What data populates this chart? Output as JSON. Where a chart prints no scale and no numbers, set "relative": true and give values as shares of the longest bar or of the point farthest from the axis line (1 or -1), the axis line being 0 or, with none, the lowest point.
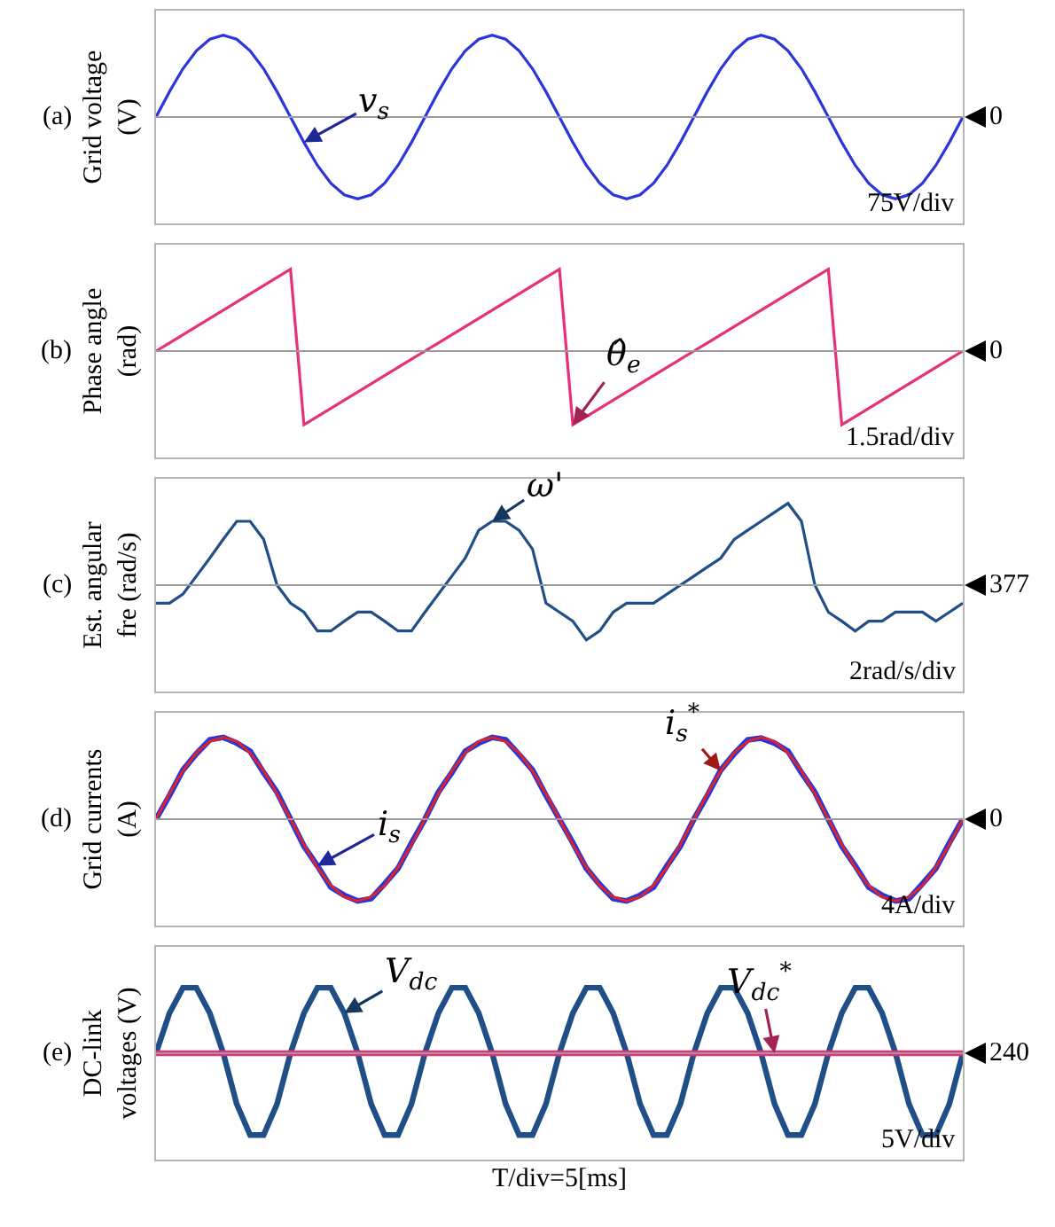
{
  "chart_data": [
    {
      "type": "line",
      "relative": true,
      "tick_labels": false,
      "ylabel": "Grid voltage\n(V)",
      "categories": [
        null,
        null,
        null,
        null,
        null,
        null,
        null,
        null,
        null,
        null,
        null,
        null,
        null,
        null,
        null,
        null,
        null,
        null,
        null,
        null,
        null,
        null,
        null,
        null,
        null,
        null,
        null,
        null,
        null,
        null,
        null,
        null,
        null,
        null,
        null,
        null,
        null,
        null,
        null,
        null,
        null,
        null,
        null,
        null,
        null,
        null,
        null,
        null,
        null,
        null,
        null,
        null,
        null,
        null,
        null,
        null,
        null,
        null,
        null,
        null,
        null
      ],
      "series": [
        {
          "name": "v$_{s}$",
          "color": "#2b36d9",
          "values": [
            0,
            0.31,
            0.59,
            0.81,
            0.95,
            1,
            0.95,
            0.81,
            0.59,
            0.31,
            0,
            -0.31,
            -0.59,
            -0.81,
            -0.95,
            -1,
            -0.95,
            -0.81,
            -0.59,
            -0.31,
            0,
            0.31,
            0.59,
            0.81,
            0.95,
            1,
            0.95,
            0.81,
            0.59,
            0.31,
            0,
            -0.31,
            -0.59,
            -0.81,
            -0.95,
            -1,
            -0.95,
            -0.81,
            -0.59,
            -0.31,
            0,
            0.31,
            0.59,
            0.81,
            0.95,
            1,
            0.95,
            0.81,
            0.59,
            0.31,
            0,
            -0.31,
            -0.59,
            -0.81,
            -0.95,
            -1,
            -0.95,
            -0.81,
            -0.59,
            -0.31,
            0
          ]
        }
      ],
      "annotations": [
        "(a)",
        "75V/div",
        "0"
      ]
    },
    {
      "type": "line",
      "relative": true,
      "tick_labels": false,
      "ylabel": "Phase angle\n(rad)",
      "categories": [
        null,
        null,
        null,
        null,
        null,
        null,
        null,
        null,
        null,
        null,
        null,
        null,
        null,
        null,
        null,
        null,
        null,
        null,
        null,
        null,
        null,
        null,
        null,
        null,
        null,
        null,
        null,
        null,
        null,
        null,
        null,
        null,
        null,
        null,
        null,
        null,
        null,
        null,
        null,
        null,
        null,
        null,
        null,
        null,
        null,
        null,
        null,
        null,
        null,
        null,
        null,
        null,
        null,
        null,
        null,
        null,
        null,
        null,
        null,
        null,
        null
      ],
      "series": [
        {
          "name": "θ̂$_{e}$",
          "color": "#e6307a",
          "values": [
            0,
            0.1,
            0.2,
            0.3,
            0.4,
            0.5,
            0.6,
            0.7,
            0.8,
            0.9,
            1,
            -0.9,
            -0.8,
            -0.7,
            -0.6,
            -0.5,
            -0.4,
            -0.3,
            -0.2,
            -0.1,
            0,
            0.1,
            0.2,
            0.3,
            0.4,
            0.5,
            0.6,
            0.7,
            0.8,
            0.9,
            1,
            -0.9,
            -0.8,
            -0.7,
            -0.6,
            -0.5,
            -0.4,
            -0.3,
            -0.2,
            -0.1,
            0,
            0.1,
            0.2,
            0.3,
            0.4,
            0.5,
            0.6,
            0.7,
            0.8,
            0.9,
            1,
            -0.9,
            -0.8,
            -0.7,
            -0.6,
            -0.5,
            -0.4,
            -0.3,
            -0.2,
            -0.1,
            0
          ]
        }
      ],
      "annotations": [
        "(b)",
        "1.5rad/div",
        "0"
      ]
    },
    {
      "type": "line",
      "relative": true,
      "tick_labels": false,
      "ylabel": "Est. angular\nfre (rad/s)",
      "categories": [
        null,
        null,
        null,
        null,
        null,
        null,
        null,
        null,
        null,
        null,
        null,
        null,
        null,
        null,
        null,
        null,
        null,
        null,
        null,
        null,
        null,
        null,
        null,
        null,
        null,
        null,
        null,
        null,
        null,
        null,
        null,
        null,
        null,
        null,
        null,
        null,
        null,
        null,
        null,
        null,
        null,
        null,
        null,
        null,
        null,
        null,
        null,
        null,
        null,
        null,
        null,
        null,
        null,
        null,
        null,
        null,
        null,
        null,
        null,
        null,
        null
      ],
      "series": [
        {
          "name": "ω'",
          "color": "#1f4f86",
          "values": [
            -0.22,
            -0.22,
            -0.11,
            0.11,
            0.33,
            0.56,
            0.78,
            0.78,
            0.56,
            0,
            -0.22,
            -0.33,
            -0.56,
            -0.56,
            -0.44,
            -0.33,
            -0.33,
            -0.44,
            -0.56,
            -0.56,
            -0.33,
            -0.11,
            0.11,
            0.33,
            0.67,
            0.78,
            0.78,
            0.67,
            0.44,
            -0.22,
            -0.33,
            -0.44,
            -0.67,
            -0.56,
            -0.33,
            -0.22,
            -0.22,
            -0.22,
            -0.11,
            0,
            0.11,
            0.22,
            0.33,
            0.56,
            0.67,
            0.78,
            0.89,
            1,
            0.78,
            0,
            -0.33,
            -0.44,
            -0.56,
            -0.44,
            -0.44,
            -0.33,
            -0.33,
            -0.33,
            -0.44,
            -0.33,
            -0.22
          ]
        }
      ],
      "annotations": [
        "(c)",
        "2rad/s/div",
        "377"
      ]
    },
    {
      "type": "line",
      "relative": true,
      "tick_labels": false,
      "ylabel": "Grid currents\n(A)",
      "categories": [
        null,
        null,
        null,
        null,
        null,
        null,
        null,
        null,
        null,
        null,
        null,
        null,
        null,
        null,
        null,
        null,
        null,
        null,
        null,
        null,
        null,
        null,
        null,
        null,
        null,
        null,
        null,
        null,
        null,
        null,
        null,
        null,
        null,
        null,
        null,
        null,
        null,
        null,
        null,
        null,
        null,
        null,
        null,
        null,
        null,
        null,
        null,
        null,
        null,
        null,
        null,
        null,
        null,
        null,
        null,
        null,
        null,
        null,
        null,
        null,
        null
      ],
      "series": [
        {
          "name": "i$_{s}$",
          "color": "#2b36d9",
          "values": [
            0,
            0.29,
            0.6,
            0.8,
            0.97,
            1,
            0.93,
            0.83,
            0.57,
            0.33,
            0,
            -0.33,
            -0.57,
            -0.83,
            -0.93,
            -1,
            -0.97,
            -0.79,
            -0.6,
            -0.29,
            0,
            0.33,
            0.57,
            0.83,
            0.93,
            1,
            0.97,
            0.79,
            0.6,
            0.29,
            0,
            -0.29,
            -0.6,
            -0.8,
            -0.97,
            -1,
            -0.93,
            -0.83,
            -0.57,
            -0.33,
            0,
            0.29,
            0.6,
            0.8,
            0.97,
            0.99,
            0.93,
            0.83,
            0.57,
            0.33,
            0,
            -0.33,
            -0.57,
            -0.83,
            -0.93,
            -1,
            -0.97,
            -0.79,
            -0.6,
            -0.29,
            0
          ]
        },
        {
          "name": "i$_{s}$$^{*}$",
          "color": "#e52222",
          "values": [
            0,
            0.31,
            0.59,
            0.81,
            0.95,
            1,
            0.95,
            0.81,
            0.59,
            0.31,
            0,
            -0.31,
            -0.59,
            -0.81,
            -0.95,
            -1,
            -0.95,
            -0.81,
            -0.59,
            -0.31,
            0,
            0.31,
            0.59,
            0.81,
            0.95,
            1,
            0.95,
            0.81,
            0.59,
            0.31,
            0,
            -0.31,
            -0.59,
            -0.81,
            -0.95,
            -1,
            -0.95,
            -0.81,
            -0.59,
            -0.31,
            0,
            0.31,
            0.59,
            0.81,
            0.95,
            1,
            0.95,
            0.81,
            0.59,
            0.31,
            0,
            -0.31,
            -0.59,
            -0.81,
            -0.95,
            -1,
            -0.95,
            -0.81,
            -0.59,
            -0.31,
            0
          ]
        }
      ],
      "annotations": [
        "(d)",
        "4A/div",
        "0"
      ]
    },
    {
      "type": "line",
      "relative": true,
      "tick_labels": false,
      "ylabel": "DC-link\nvoltages (V)",
      "xlabel": "T/div=5[ms]",
      "categories": [
        null,
        null,
        null,
        null,
        null,
        null,
        null,
        null,
        null,
        null,
        null,
        null,
        null,
        null,
        null,
        null,
        null,
        null,
        null,
        null,
        null,
        null,
        null,
        null,
        null,
        null,
        null,
        null,
        null,
        null,
        null,
        null,
        null,
        null,
        null,
        null,
        null,
        null,
        null,
        null,
        null,
        null,
        null,
        null,
        null,
        null,
        null,
        null,
        null,
        null,
        null,
        null,
        null,
        null,
        null,
        null,
        null,
        null,
        null,
        null,
        null
      ],
      "series": [
        {
          "name": "V$_{dc}$",
          "color": "#1f4f86",
          "values": [
            0,
            0.49,
            0.8,
            0.8,
            0.49,
            0,
            -0.62,
            -1,
            -1,
            -0.62,
            0,
            0.49,
            0.8,
            0.8,
            0.49,
            0,
            -0.62,
            -1,
            -1,
            -0.62,
            0,
            0.49,
            0.8,
            0.8,
            0.49,
            0,
            -0.62,
            -1,
            -1,
            -0.62,
            0,
            0.49,
            0.8,
            0.8,
            0.49,
            0,
            -0.62,
            -1,
            -1,
            -0.62,
            0,
            0.49,
            0.8,
            0.8,
            0.49,
            0,
            -0.62,
            -1,
            -1,
            -0.62,
            0,
            0.49,
            0.8,
            0.8,
            0.49,
            0,
            -0.62,
            -1,
            -1,
            -0.62,
            0
          ]
        },
        {
          "name": "V$_{dc}$$^{*}$",
          "color": "#e6307a",
          "values": [
            0,
            0,
            0,
            0,
            0,
            0,
            0,
            0,
            0,
            0,
            0,
            0,
            0,
            0,
            0,
            0,
            0,
            0,
            0,
            0,
            0,
            0,
            0,
            0,
            0,
            0,
            0,
            0,
            0,
            0,
            0,
            0,
            0,
            0,
            0,
            0,
            0,
            0,
            0,
            0,
            0,
            0,
            0,
            0,
            0,
            0,
            0,
            0,
            0,
            0,
            0,
            0,
            0,
            0,
            0,
            0,
            0,
            0,
            0,
            0,
            0
          ]
        }
      ],
      "annotations": [
        "(e)",
        "5V/div",
        "240"
      ]
    }
  ]
}
